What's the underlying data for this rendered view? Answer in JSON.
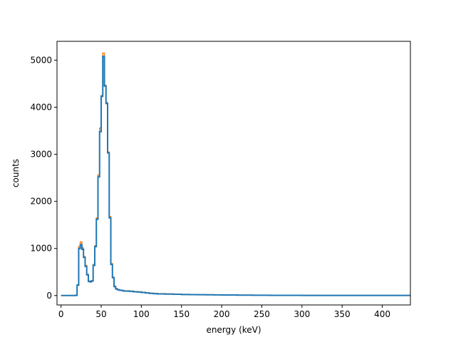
{
  "chart_data": {
    "type": "line",
    "title": "",
    "xlabel": "energy (keV)",
    "ylabel": "counts",
    "xlim": [
      -5,
      435
    ],
    "ylim": [
      -200,
      5400
    ],
    "xticks": [
      0,
      50,
      100,
      150,
      200,
      250,
      300,
      350,
      400
    ],
    "yticks": [
      0,
      1000,
      2000,
      3000,
      4000,
      5000
    ],
    "grid": false,
    "legend": "none",
    "series": [
      {
        "color": "#ff7f0e",
        "drawstyle": "steps",
        "x": [
          0,
          2,
          4,
          6,
          8,
          10,
          12,
          14,
          16,
          18,
          20,
          22,
          24,
          26,
          28,
          30,
          32,
          34,
          36,
          38,
          40,
          42,
          44,
          46,
          48,
          50,
          52,
          54,
          56,
          58,
          60,
          62,
          64,
          66,
          68,
          70,
          72,
          74,
          76,
          78,
          80,
          85,
          90,
          95,
          100,
          105,
          110,
          115,
          120,
          130,
          140,
          150,
          160,
          170,
          180,
          190,
          200,
          220,
          240,
          260,
          280,
          300,
          320,
          340,
          360,
          380,
          400,
          420,
          435
        ],
        "y": [
          0,
          0,
          0,
          0,
          0,
          0,
          0,
          0,
          0,
          10,
          230,
          1040,
          1140,
          1010,
          830,
          640,
          450,
          310,
          300,
          320,
          660,
          1060,
          1650,
          2560,
          3560,
          4250,
          5150,
          4470,
          4100,
          3050,
          1680,
          680,
          390,
          200,
          150,
          130,
          120,
          115,
          110,
          100,
          100,
          95,
          85,
          80,
          70,
          60,
          50,
          45,
          40,
          35,
          30,
          25,
          22,
          20,
          18,
          15,
          12,
          10,
          8,
          6,
          5,
          4,
          3,
          3,
          2,
          2,
          2,
          2,
          2
        ]
      },
      {
        "color": "#1f77b4",
        "drawstyle": "steps",
        "x": [
          0,
          2,
          4,
          6,
          8,
          10,
          12,
          14,
          16,
          18,
          20,
          22,
          24,
          26,
          28,
          30,
          32,
          34,
          36,
          38,
          40,
          42,
          44,
          46,
          48,
          50,
          52,
          54,
          56,
          58,
          60,
          62,
          64,
          66,
          68,
          70,
          72,
          74,
          76,
          78,
          80,
          85,
          90,
          95,
          100,
          105,
          110,
          115,
          120,
          130,
          140,
          150,
          160,
          170,
          180,
          190,
          200,
          220,
          240,
          260,
          280,
          300,
          320,
          340,
          360,
          380,
          400,
          420,
          435
        ],
        "y": [
          0,
          0,
          0,
          0,
          0,
          0,
          0,
          0,
          0,
          5,
          220,
          1000,
          1080,
          980,
          810,
          620,
          440,
          300,
          290,
          310,
          640,
          1040,
          1620,
          2520,
          3480,
          4230,
          5080,
          4450,
          4080,
          3030,
          1650,
          660,
          380,
          190,
          140,
          125,
          115,
          110,
          105,
          95,
          95,
          90,
          80,
          75,
          65,
          55,
          45,
          40,
          35,
          30,
          28,
          22,
          20,
          18,
          16,
          14,
          11,
          9,
          7,
          5,
          4,
          3,
          3,
          2,
          2,
          2,
          2,
          2,
          2
        ]
      }
    ]
  }
}
